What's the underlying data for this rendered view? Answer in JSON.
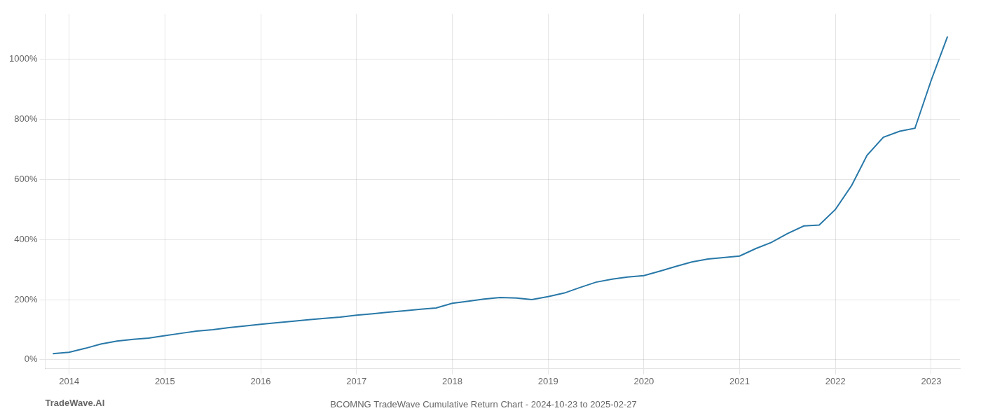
{
  "chart_data": {
    "type": "line",
    "title": "BCOMNG TradeWave Cumulative Return Chart - 2024-10-23 to 2025-02-27",
    "annotations": [
      "TradeWave.AI"
    ],
    "x": [
      2013.83,
      2014.0,
      2014.17,
      2014.33,
      2014.5,
      2014.67,
      2014.83,
      2015.0,
      2015.17,
      2015.33,
      2015.5,
      2015.67,
      2015.83,
      2016.0,
      2016.17,
      2016.33,
      2016.5,
      2016.67,
      2016.83,
      2017.0,
      2017.17,
      2017.33,
      2017.5,
      2017.67,
      2017.83,
      2018.0,
      2018.17,
      2018.33,
      2018.5,
      2018.67,
      2018.83,
      2019.0,
      2019.17,
      2019.33,
      2019.5,
      2019.67,
      2019.83,
      2020.0,
      2020.17,
      2020.33,
      2020.5,
      2020.67,
      2020.83,
      2021.0,
      2021.17,
      2021.33,
      2021.5,
      2021.67,
      2021.83,
      2022.0,
      2022.17,
      2022.33,
      2022.5,
      2022.67,
      2022.83,
      2023.0,
      2023.17
    ],
    "values": [
      20,
      25,
      38,
      52,
      62,
      68,
      72,
      80,
      88,
      95,
      100,
      107,
      112,
      118,
      123,
      128,
      133,
      138,
      142,
      148,
      153,
      158,
      163,
      168,
      172,
      188,
      195,
      202,
      207,
      205,
      200,
      210,
      222,
      240,
      258,
      268,
      275,
      280,
      295,
      310,
      325,
      335,
      340,
      345,
      370,
      390,
      420,
      445,
      448,
      500,
      580,
      680,
      740,
      760,
      770,
      930,
      1075
    ],
    "color": "#2878a8",
    "xlim": [
      2013.75,
      2023.3
    ],
    "xticks": [
      2014,
      2015,
      2016,
      2017,
      2018,
      2019,
      2020,
      2021,
      2022,
      2023
    ],
    "ylim": [
      -30,
      1150
    ],
    "yticks": [
      {
        "value": 0,
        "label": "0%"
      },
      {
        "value": 200,
        "label": "200%"
      },
      {
        "value": 400,
        "label": "400%"
      },
      {
        "value": 600,
        "label": "600%"
      },
      {
        "value": 800,
        "label": "800%"
      },
      {
        "value": 1000,
        "label": "1000%"
      }
    ],
    "grid": true
  }
}
